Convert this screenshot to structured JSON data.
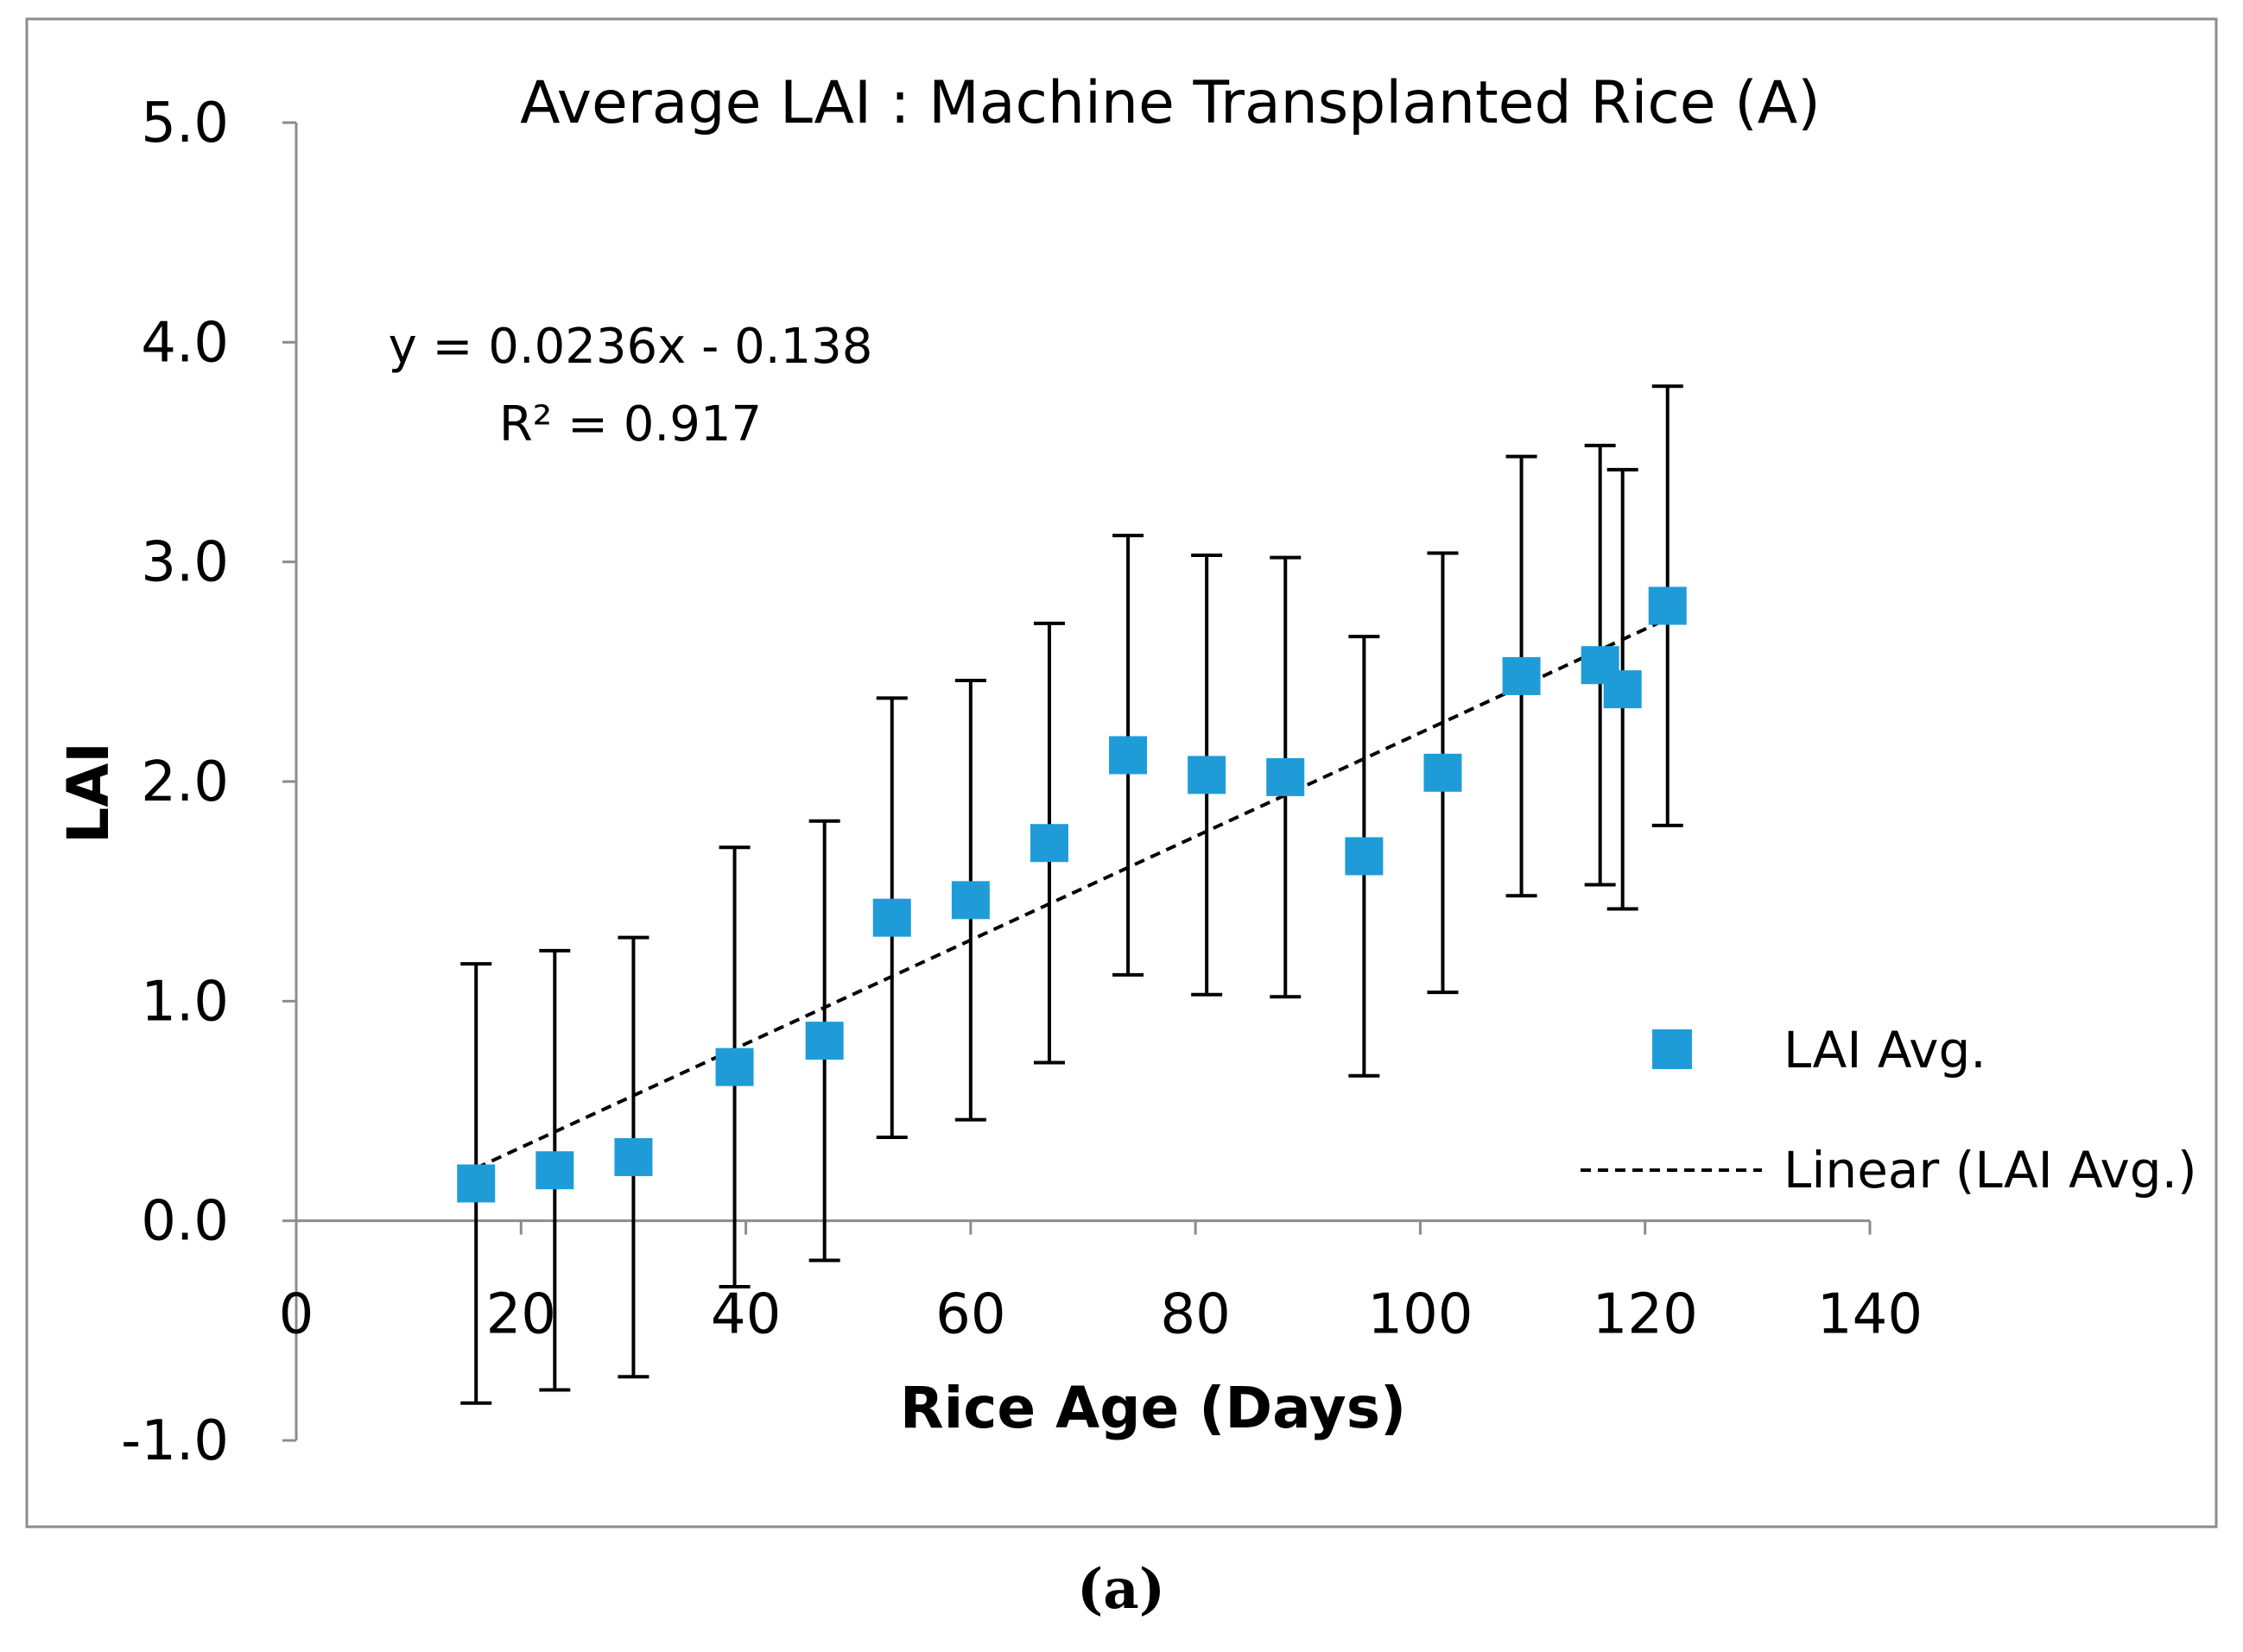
{
  "chart_data": {
    "type": "scatter",
    "title": "Average LAI : Machine Transplanted Rice (A)",
    "xlabel": "Rice Age (Days)",
    "ylabel": "LAI",
    "xlim": [
      0,
      140
    ],
    "ylim": [
      -1.0,
      5.0
    ],
    "x_ticks": [
      "0",
      "20",
      "40",
      "60",
      "80",
      "100",
      "120",
      "140"
    ],
    "y_ticks": [
      "-1.0",
      "0.0",
      "1.0",
      "2.0",
      "3.0",
      "4.0",
      "5.0"
    ],
    "series": [
      {
        "name": "LAI Avg.",
        "color": "#1f9cd8",
        "marker": "square",
        "error_bar": 2.0,
        "x": [
          16,
          23,
          30,
          39,
          47,
          53,
          60,
          67,
          74,
          81,
          88,
          95,
          102,
          109,
          116,
          118,
          122
        ],
        "y": [
          0.17,
          0.23,
          0.29,
          0.7,
          0.82,
          1.38,
          1.46,
          1.72,
          2.12,
          2.03,
          2.02,
          1.66,
          2.04,
          2.48,
          2.53,
          2.42,
          2.8
        ],
        "err_low": [
          -0.83,
          -0.77,
          -0.71,
          -0.3,
          -0.18,
          0.38,
          0.46,
          0.72,
          1.12,
          1.03,
          1.02,
          0.66,
          1.04,
          1.48,
          1.53,
          1.42,
          1.8
        ],
        "err_high": [
          1.17,
          1.23,
          1.29,
          1.7,
          1.82,
          2.38,
          2.46,
          2.72,
          3.12,
          3.03,
          3.02,
          2.66,
          3.04,
          3.48,
          3.53,
          3.42,
          3.8
        ]
      }
    ],
    "trendline": {
      "name": "Linear (LAI Avg.)",
      "slope": 0.0236,
      "intercept": -0.138,
      "x_range": [
        16,
        122
      ],
      "style": "dashed",
      "color": "#000000"
    },
    "equation": "y = 0.0236x - 0.138",
    "r_squared": "R² = 0.917",
    "legend": {
      "position": "right",
      "entries": [
        "LAI Avg.",
        "Linear (LAI Avg.)"
      ]
    },
    "caption": "(a)"
  }
}
